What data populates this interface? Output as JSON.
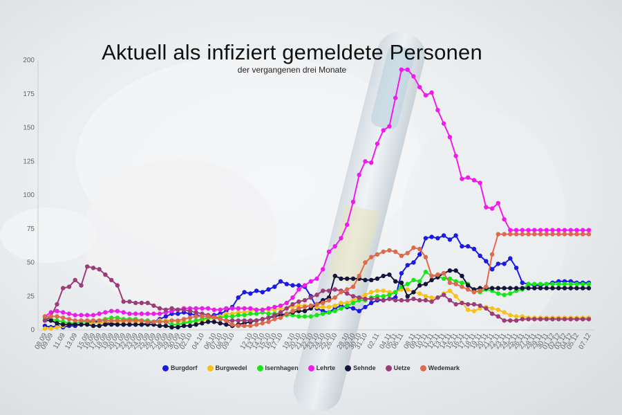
{
  "chart_data": {
    "type": "line",
    "title": "Aktuell als infiziert gemeldete Personen",
    "subtitle": "der vergangenen drei Monate",
    "xlabel": "",
    "ylabel": "",
    "ylim": [
      0,
      200
    ],
    "yticks": [
      0,
      25,
      50,
      75,
      100,
      125,
      150,
      175,
      200
    ],
    "grid": false,
    "legend_position": "bottom",
    "x": [
      "08.09",
      "09.09",
      "10.09",
      "11.09",
      "12.09",
      "13.09",
      "14.09",
      "15.09",
      "16.09",
      "17.09",
      "18.09",
      "19.09",
      "20.09",
      "21.09",
      "22.09",
      "23.09",
      "24.09",
      "25.09",
      "26.09",
      "27.09",
      "28.09",
      "29.09",
      "30.09",
      "01.10",
      "02.10",
      "03.10",
      "04.10",
      "05.10",
      "06.10",
      "07.10",
      "08.10",
      "09.10",
      "10.10",
      "11.10",
      "12.10",
      "13.10",
      "14.10",
      "15.10",
      "16.10",
      "17.10",
      "18.10",
      "19.10",
      "20.10",
      "21.10",
      "22.10",
      "23.10",
      "24.10",
      "25.10",
      "26.10",
      "27.10",
      "28.10",
      "29.10",
      "30.10",
      "31.10",
      "01.11",
      "02.11",
      "03.11",
      "04.11",
      "05.11",
      "06.11",
      "07.11",
      "08.11",
      "09.11",
      "10.11",
      "11.11",
      "12.11",
      "13.11",
      "14.11",
      "15.11",
      "16.11",
      "17.11",
      "18.11",
      "19.11",
      "20.11",
      "21.11",
      "22.11",
      "23.11",
      "24.11",
      "25.11",
      "26.11",
      "27.11",
      "28.11",
      "29.11",
      "30.11",
      "01.12",
      "02.12",
      "03.12",
      "04.12",
      "05.12",
      "06.12",
      "07.12"
    ],
    "x_tick_labels": [
      "08.09",
      "09.09",
      "11.09",
      "13.09",
      "15.09",
      "16.09",
      "17.09",
      "18.09",
      "19.09",
      "20.09",
      "21.09",
      "22.09",
      "23.09",
      "24.09",
      "25.09",
      "26.09",
      "27.09",
      "28.09",
      "29.09",
      "30.09",
      "01.10",
      "02.10",
      "04.10",
      "06.10",
      "07.10",
      "08.10",
      "09.10",
      "12.10",
      "13.10",
      "14.10",
      "15.10",
      "16.10",
      "17.10",
      "19.10",
      "20.10",
      "21.10",
      "22.10",
      "23.10",
      "24.10",
      "25.10",
      "26.10",
      "28.10",
      "29.10",
      "30.10",
      "31.10",
      "02.11",
      "04.11",
      "05.11",
      "06.11",
      "08.11",
      "09.11",
      "10.11",
      "11.11",
      "12.11",
      "13.11",
      "14.11",
      "15.11",
      "16.11",
      "17.11",
      "18.11",
      "19.11",
      "20.11",
      "21.11",
      "22.11",
      "23.11",
      "24.11",
      "25.11",
      "26.11",
      "27.11",
      "28.11",
      "29.11",
      "30.11",
      "01.12",
      "02.12",
      "03.12",
      "04.12",
      "05.12",
      "07.12"
    ],
    "series": [
      {
        "name": "Burgdorf",
        "color": "#1a1ae6",
        "values": [
          3,
          2,
          3,
          2,
          3,
          3,
          4,
          5,
          6,
          6,
          5,
          5,
          4,
          4,
          4,
          4,
          4,
          5,
          6,
          8,
          10,
          12,
          12,
          13,
          12,
          11,
          10,
          10,
          11,
          12,
          14,
          17,
          24,
          28,
          27,
          29,
          28,
          30,
          32,
          36,
          34,
          33,
          33,
          32,
          25,
          16,
          14,
          13,
          16,
          18,
          17,
          16,
          14,
          17,
          20,
          22,
          22,
          23,
          24,
          42,
          48,
          50,
          56,
          68,
          69,
          68,
          70,
          67,
          70,
          62,
          62,
          60,
          55,
          51,
          45,
          49,
          49,
          53,
          46,
          35,
          34,
          33,
          33,
          34,
          35,
          36,
          36,
          36,
          35,
          35,
          35
        ]
      },
      {
        "name": "Burgwedel",
        "color": "#f5c21b",
        "values": [
          1,
          1,
          2,
          3,
          4,
          4,
          4,
          5,
          5,
          5,
          6,
          6,
          6,
          6,
          6,
          6,
          6,
          6,
          6,
          7,
          7,
          7,
          6,
          6,
          6,
          6,
          7,
          8,
          9,
          10,
          12,
          12,
          13,
          13,
          14,
          15,
          15,
          15,
          15,
          16,
          16,
          17,
          18,
          18,
          18,
          17,
          17,
          17,
          18,
          20,
          20,
          22,
          24,
          26,
          28,
          29,
          29,
          28,
          28,
          30,
          30,
          28,
          27,
          25,
          24,
          24,
          27,
          29,
          25,
          20,
          15,
          14,
          16,
          17,
          16,
          15,
          13,
          11,
          10,
          10,
          9,
          9,
          9,
          9,
          9,
          9,
          9,
          9,
          9,
          9,
          9
        ]
      },
      {
        "name": "Isernhagen",
        "color": "#19e619",
        "values": [
          9,
          8,
          7,
          6,
          5,
          5,
          6,
          6,
          7,
          7,
          8,
          9,
          9,
          8,
          8,
          8,
          7,
          7,
          6,
          6,
          6,
          4,
          4,
          5,
          6,
          7,
          8,
          9,
          9,
          9,
          10,
          10,
          11,
          11,
          12,
          12,
          13,
          12,
          12,
          12,
          11,
          11,
          10,
          10,
          10,
          11,
          12,
          13,
          14,
          16,
          18,
          20,
          22,
          22,
          24,
          25,
          25,
          26,
          28,
          32,
          34,
          37,
          36,
          43,
          40,
          40,
          38,
          38,
          36,
          35,
          34,
          29,
          28,
          30,
          29,
          27,
          26,
          27,
          29,
          30,
          34,
          34,
          34,
          34,
          34,
          34,
          34,
          34,
          34,
          34,
          34
        ]
      },
      {
        "name": "Lehrte",
        "color": "#ee1aee",
        "values": [
          10,
          13,
          14,
          13,
          12,
          11,
          11,
          11,
          11,
          12,
          13,
          14,
          14,
          13,
          12,
          12,
          12,
          12,
          12,
          12,
          13,
          14,
          15,
          16,
          16,
          16,
          16,
          16,
          15,
          15,
          16,
          16,
          16,
          16,
          16,
          15,
          15,
          16,
          17,
          18,
          20,
          24,
          30,
          33,
          36,
          38,
          45,
          58,
          62,
          68,
          78,
          95,
          115,
          125,
          124,
          138,
          148,
          151,
          172,
          193,
          193,
          188,
          180,
          174,
          176,
          163,
          153,
          143,
          129,
          112,
          113,
          111,
          109,
          91,
          90,
          94,
          82,
          74,
          74,
          74,
          74,
          74,
          74,
          74,
          74,
          74,
          74,
          74,
          74,
          74,
          74
        ]
      },
      {
        "name": "Sehnde",
        "color": "#14143c",
        "values": [
          7,
          7,
          5,
          4,
          4,
          4,
          4,
          4,
          3,
          3,
          4,
          4,
          4,
          4,
          4,
          4,
          4,
          4,
          4,
          3,
          3,
          2,
          2,
          3,
          3,
          4,
          5,
          6,
          6,
          5,
          4,
          3,
          4,
          5,
          6,
          7,
          8,
          9,
          10,
          11,
          12,
          13,
          14,
          14,
          16,
          19,
          22,
          24,
          40,
          38,
          38,
          38,
          38,
          37,
          37,
          38,
          40,
          41,
          36,
          35,
          25,
          28,
          33,
          34,
          37,
          39,
          42,
          44,
          44,
          40,
          33,
          30,
          31,
          31,
          31,
          31,
          31,
          31,
          31,
          31,
          31,
          31,
          31,
          31,
          31,
          31,
          31,
          31,
          31,
          31,
          31
        ]
      },
      {
        "name": "Uetze",
        "color": "#9c3c78",
        "values": [
          7,
          10,
          19,
          31,
          32,
          37,
          33,
          47,
          46,
          45,
          41,
          37,
          33,
          21,
          21,
          20,
          20,
          20,
          18,
          16,
          15,
          16,
          15,
          15,
          14,
          13,
          12,
          11,
          10,
          8,
          7,
          7,
          7,
          7,
          7,
          7,
          8,
          9,
          11,
          13,
          16,
          19,
          21,
          22,
          24,
          26,
          29,
          29,
          30,
          29,
          27,
          25,
          24,
          23,
          23,
          23,
          22,
          23,
          22,
          22,
          22,
          23,
          22,
          22,
          21,
          24,
          26,
          22,
          19,
          20,
          19,
          19,
          18,
          16,
          12,
          10,
          7,
          7,
          7,
          8,
          8,
          8,
          8,
          8,
          8,
          8,
          8,
          8,
          8,
          8,
          8
        ]
      },
      {
        "name": "Wedemark",
        "color": "#de6a4e",
        "values": [
          10,
          10,
          10,
          9,
          8,
          7,
          7,
          7,
          7,
          7,
          7,
          7,
          7,
          7,
          7,
          7,
          7,
          6,
          6,
          6,
          6,
          7,
          7,
          8,
          9,
          10,
          10,
          10,
          9,
          8,
          7,
          4,
          3,
          3,
          3,
          4,
          5,
          6,
          8,
          9,
          12,
          14,
          16,
          17,
          18,
          19,
          20,
          22,
          24,
          28,
          30,
          32,
          40,
          50,
          54,
          56,
          58,
          59,
          58,
          55,
          57,
          61,
          60,
          54,
          40,
          41,
          42,
          35,
          34,
          32,
          30,
          28,
          29,
          32,
          56,
          71,
          71,
          71,
          71,
          71,
          71,
          71,
          71,
          71,
          71,
          71,
          71,
          71,
          71,
          71,
          71
        ]
      }
    ]
  }
}
